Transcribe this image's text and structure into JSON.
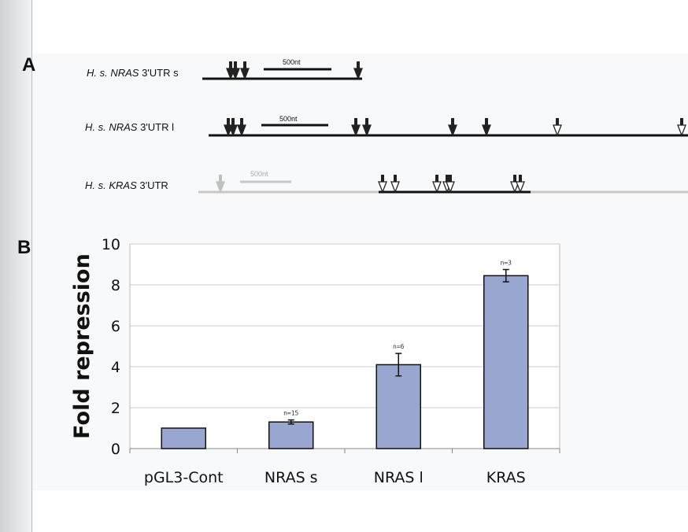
{
  "panel_a": {
    "letter": "A",
    "rows": [
      {
        "label_species": "H. s. ",
        "label_gene": "NRAS",
        "label_rest": " 3'UTR s",
        "scale": "500nt"
      },
      {
        "label_species": "H. s. ",
        "label_gene": "NRAS",
        "label_rest": " 3'UTR l",
        "scale": "500nt"
      },
      {
        "label_species": "H. s. ",
        "label_gene": "KRAS",
        "label_rest": " 3'UTR",
        "scale": "500nt"
      }
    ]
  },
  "panel_b": {
    "letter": "B"
  },
  "chart_data": {
    "type": "bar",
    "title": "",
    "xlabel": "",
    "ylabel": "Fold repression",
    "ylim": [
      0,
      10
    ],
    "yticks": [
      "0",
      "2",
      "4",
      "6",
      "8",
      "10"
    ],
    "grid": true,
    "categories": [
      "pGL3-Cont",
      "NRAS s",
      "NRAS l",
      "KRAS"
    ],
    "values": [
      1.0,
      1.3,
      4.1,
      8.45
    ],
    "errors": [
      null,
      0.1,
      0.55,
      0.3
    ],
    "annotations": [
      "",
      "n=15",
      "n=6",
      "n=3"
    ],
    "colors": {
      "bar": "#99a6cf",
      "bar_edge": "#111111",
      "grid": "#cccccc"
    }
  }
}
